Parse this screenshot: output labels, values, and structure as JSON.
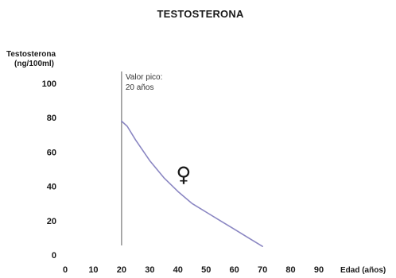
{
  "chart_data": {
    "type": "line",
    "title": "TESTOSTERONA",
    "ylabel_lines": [
      "Testosterona",
      "(ng/100ml)"
    ],
    "xlabel": "Edad (años)",
    "xlim": [
      0,
      90
    ],
    "ylim": [
      0,
      100
    ],
    "x_ticks": [
      0,
      10,
      20,
      30,
      40,
      50,
      60,
      70,
      80,
      90
    ],
    "y_ticks": [
      0,
      20,
      40,
      60,
      80,
      100
    ],
    "grid": false,
    "series": [
      {
        "color": "#8a86c2",
        "x": [
          20,
          22,
          25,
          30,
          35,
          40,
          45,
          50,
          55,
          60,
          65,
          70
        ],
        "y": [
          78,
          75,
          67,
          55,
          45,
          37,
          30,
          25,
          20,
          15,
          10,
          5
        ]
      }
    ],
    "peak_line": {
      "x": 20,
      "color": "#777777"
    },
    "annotations": [
      {
        "lines": [
          "Valor pico:",
          "20 años"
        ],
        "x": 20,
        "y": 100
      }
    ],
    "symbol": {
      "text": "♀",
      "x": 42,
      "y": 47,
      "meaning": "female-symbol"
    }
  },
  "colors": {
    "axis": "#1a1a1a",
    "series": "#8a86c2",
    "peak_line": "#777777"
  }
}
